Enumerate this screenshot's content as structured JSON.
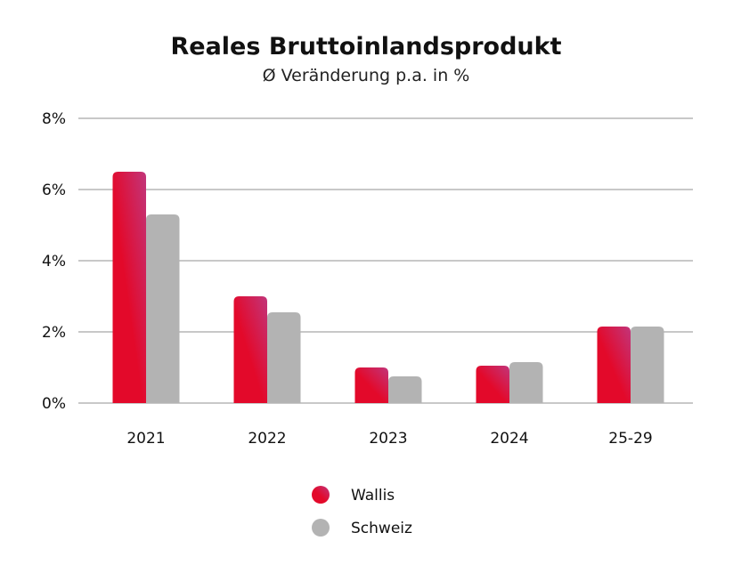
{
  "chart_data": {
    "type": "bar",
    "title": "Reales Bruttoinlandsprodukt",
    "subtitle": "Ø Veränderung p.a. in %",
    "categories": [
      "2021",
      "2022",
      "2023",
      "2024",
      "25-29"
    ],
    "series": [
      {
        "name": "Wallis",
        "values": [
          6.5,
          3.0,
          1.0,
          1.05,
          2.15
        ]
      },
      {
        "name": "Schweiz",
        "values": [
          5.3,
          2.55,
          0.75,
          1.15,
          2.15
        ]
      }
    ],
    "ylim": [
      0,
      8
    ],
    "yticks": [
      0,
      2,
      4,
      6,
      8
    ],
    "ytick_labels": [
      "0%",
      "2%",
      "4%",
      "6%",
      "8%"
    ],
    "grid": true,
    "legend_position": "bottom",
    "colors": {
      "wallis_top": "#c2357a",
      "wallis_bottom": "#e3092a",
      "schweiz": "#b3b3b3",
      "grid": "#a6a6a6"
    }
  }
}
